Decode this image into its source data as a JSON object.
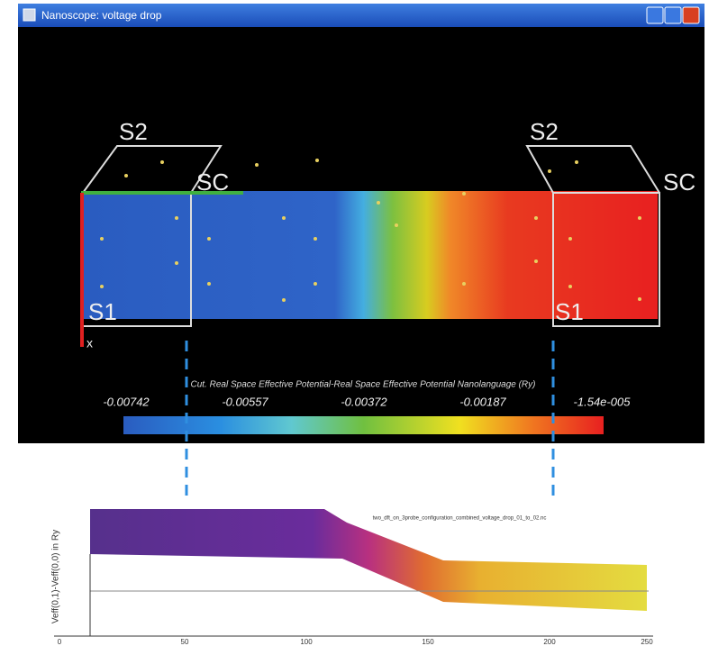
{
  "window": {
    "title": "Nanoscope: voltage drop"
  },
  "scene": {
    "labels": [
      "S2",
      "SC",
      "S2",
      "SC",
      "S1",
      "S1",
      "x"
    ]
  },
  "colorbar": {
    "title": "Cut. Real Space Effective Potential-Real Space Effective Potential Nanolanguage (Ry)",
    "ticks": [
      "-0.00742",
      "-0.00557",
      "-0.00372",
      "-0.00187",
      "-1.54e-005"
    ]
  },
  "plot": {
    "title": "two_dft_on_3probe_configuration_combined_voltage_drop_01_to_02.nc",
    "ylabel": "Veff(0,1)-Veff(0,0) in Ry",
    "xticks": [
      "0",
      "50",
      "100",
      "150",
      "200",
      "250"
    ]
  }
}
